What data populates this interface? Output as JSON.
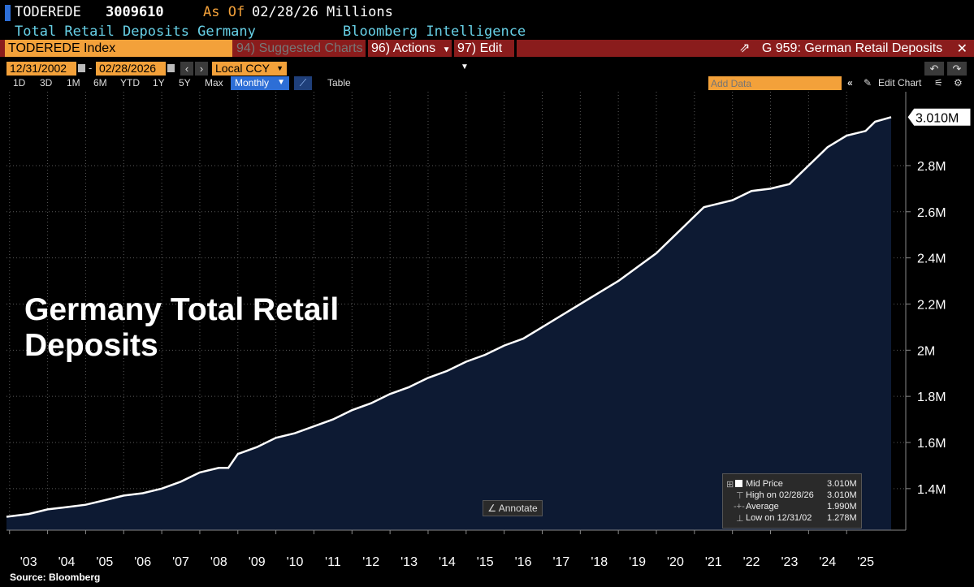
{
  "header": {
    "ticker": "TODEREDE",
    "value": "3009610",
    "as_of_label": "As Of",
    "as_of_date": "02/28/26",
    "units": "Millions",
    "series_name": "Total Retail Deposits Germany",
    "provider": "Bloomberg Intelligence"
  },
  "toolbar": {
    "index_label": "TODEREDE Index",
    "suggested_charts": "94) Suggested Charts",
    "actions": "96) Actions",
    "edit": "97) Edit",
    "chart_id": "G 959: German Retail Deposits",
    "start_date": "12/31/2002",
    "end_date": "02/28/2026",
    "currency": "Local CCY",
    "periods": [
      "1D",
      "3D",
      "1M",
      "6M",
      "YTD",
      "1Y",
      "5Y",
      "Max"
    ],
    "frequency": "Monthly",
    "table_label": "Table",
    "add_data_placeholder": "Add Data",
    "edit_chart": "Edit Chart"
  },
  "colors": {
    "header_bar": "#8a1c1c",
    "orange": "#f3a13a",
    "fill": "#0d1a33",
    "line": "#ffffff"
  },
  "overlay": {
    "title_line1": "Germany Total Retail",
    "title_line2": "Deposits",
    "annotate": "Annotate",
    "source": "Source: Bloomberg"
  },
  "legend": {
    "mid_label": "Mid Price",
    "mid_value": "3.010M",
    "high_label": "High on 02/28/26",
    "high_value": "3.010M",
    "avg_label": "Average",
    "avg_value": "1.990M",
    "low_label": "Low on 12/31/02",
    "low_value": "1.278M"
  },
  "chart_data": {
    "type": "area",
    "title": "Germany Total Retail Deposits",
    "ylabel": "Millions",
    "x_start": 2002.92,
    "x_end": 2026.17,
    "ylim": [
      1.22,
      3.12
    ],
    "yticks": [
      1.4,
      1.6,
      1.8,
      2.0,
      2.2,
      2.4,
      2.6,
      2.8
    ],
    "ytick_labels": [
      "1.4M",
      "1.6M",
      "1.8M",
      "2M",
      "2.2M",
      "2.4M",
      "2.6M",
      "2.8M"
    ],
    "xtick_labels": [
      "'03",
      "'04",
      "'05",
      "'06",
      "'07",
      "'08",
      "'09",
      "'10",
      "'11",
      "'12",
      "'13",
      "'14",
      "'15",
      "'16",
      "'17",
      "'18",
      "'19",
      "'20",
      "'21",
      "'22",
      "'23",
      "'24",
      "'25"
    ],
    "last_value_label": "3.010M",
    "series": [
      {
        "name": "TODEREDE Index",
        "x": [
          2002.92,
          2003.5,
          2004.0,
          2004.5,
          2005.0,
          2005.5,
          2006.0,
          2006.5,
          2007.0,
          2007.5,
          2008.0,
          2008.5,
          2008.75,
          2009.0,
          2009.5,
          2010.0,
          2010.5,
          2011.0,
          2011.5,
          2012.0,
          2012.5,
          2013.0,
          2013.5,
          2014.0,
          2014.5,
          2015.0,
          2015.5,
          2016.0,
          2016.5,
          2017.0,
          2017.5,
          2018.0,
          2018.5,
          2019.0,
          2019.5,
          2020.0,
          2020.5,
          2021.0,
          2021.25,
          2021.5,
          2022.0,
          2022.5,
          2023.0,
          2023.25,
          2023.5,
          2024.0,
          2024.5,
          2025.0,
          2025.5,
          2025.75,
          2026.17
        ],
        "values": [
          1.278,
          1.29,
          1.31,
          1.32,
          1.33,
          1.35,
          1.37,
          1.38,
          1.4,
          1.43,
          1.47,
          1.49,
          1.49,
          1.55,
          1.58,
          1.62,
          1.64,
          1.67,
          1.7,
          1.74,
          1.77,
          1.81,
          1.84,
          1.88,
          1.91,
          1.95,
          1.98,
          2.02,
          2.05,
          2.1,
          2.15,
          2.2,
          2.25,
          2.3,
          2.36,
          2.42,
          2.5,
          2.58,
          2.62,
          2.63,
          2.65,
          2.69,
          2.7,
          2.71,
          2.72,
          2.8,
          2.88,
          2.93,
          2.95,
          2.99,
          3.01
        ]
      }
    ]
  }
}
